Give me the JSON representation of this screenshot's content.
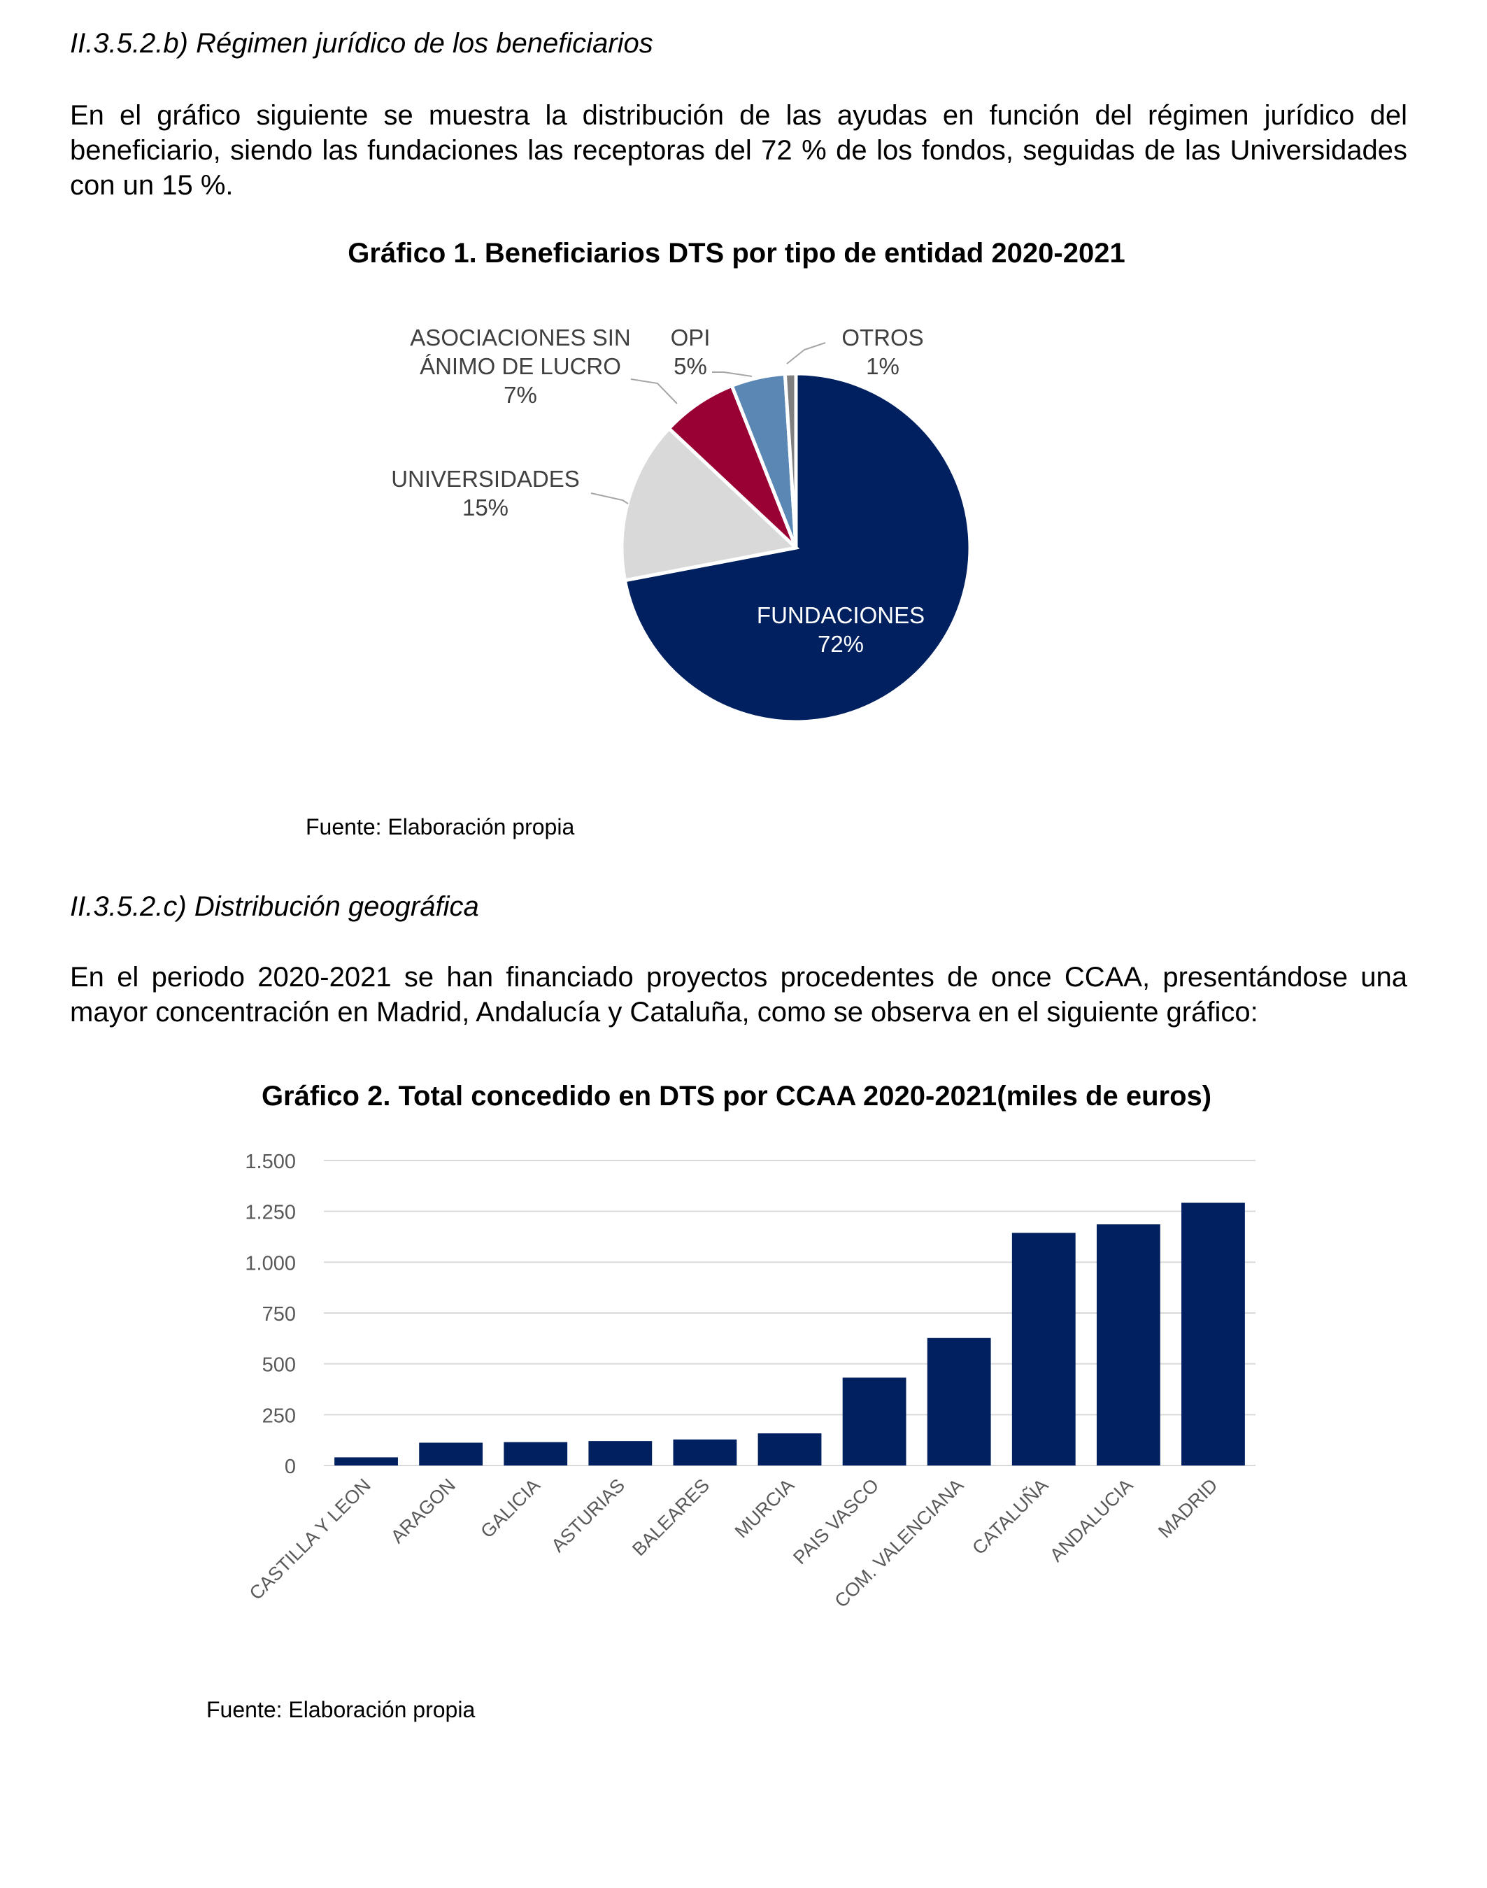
{
  "section_b": {
    "heading": "II.3.5.2.b) Régimen jurídico de los beneficiarios",
    "paragraph": "En el gráfico siguiente se muestra la distribución de las ayudas en función del régimen jurídico del beneficiario, siendo las fundaciones las receptoras del 72 % de los fondos, seguidas de las Universidades con un 15 %."
  },
  "section_c": {
    "heading": "II.3.5.2.c) Distribución geográfica",
    "paragraph": "En el periodo 2020-2021 se han financiado proyectos procedentes de once CCAA, presentándose una mayor concentración en Madrid, Andalucía y Cataluña, como se observa en el siguiente gráfico:"
  },
  "chart_data": [
    {
      "type": "pie",
      "title": "Gráfico 1. Beneficiarios DTS por tipo de entidad 2020-2021",
      "source": "Fuente: Elaboración propia",
      "slices": [
        {
          "label": "FUNDACIONES",
          "value": 72,
          "display": "72%",
          "color": "#002060"
        },
        {
          "label": "UNIVERSIDADES",
          "value": 15,
          "display": "15%",
          "color": "#d9d9d9"
        },
        {
          "label": "ASOCIACIONES SIN ÁNIMO DE LUCRO",
          "label_lines": [
            "ASOCIACIONES SIN",
            "ÁNIMO DE LUCRO"
          ],
          "value": 7,
          "display": "7%",
          "color": "#990033"
        },
        {
          "label": "OPI",
          "value": 5,
          "display": "5%",
          "color": "#5b87b5"
        },
        {
          "label": "OTROS",
          "value": 1,
          "display": "1%",
          "color": "#7f7f7f"
        }
      ]
    },
    {
      "type": "bar",
      "title": "Gráfico 2. Total concedido en DTS por CCAA 2020-2021(miles de euros)",
      "source": "Fuente: Elaboración propia",
      "categories": [
        "CASTILLA Y LEON",
        "ARAGON",
        "GALICIA",
        "ASTURIAS",
        "BALEARES",
        "MURCIA",
        "PAIS VASCO",
        "COM. VALENCIANA",
        "CATALUÑA",
        "ANDALUCIA",
        "MADRID"
      ],
      "values": [
        40,
        112,
        115,
        120,
        128,
        158,
        432,
        627,
        1144,
        1186,
        1292
      ],
      "ylim": [
        0,
        1500
      ],
      "yticks": [
        0,
        250,
        500,
        750,
        1000,
        1250,
        1500
      ],
      "ytick_labels": [
        "0",
        "250",
        "500",
        "750",
        "1.000",
        "1.250",
        "1.500"
      ],
      "grid": true,
      "bar_color": "#002060"
    }
  ]
}
